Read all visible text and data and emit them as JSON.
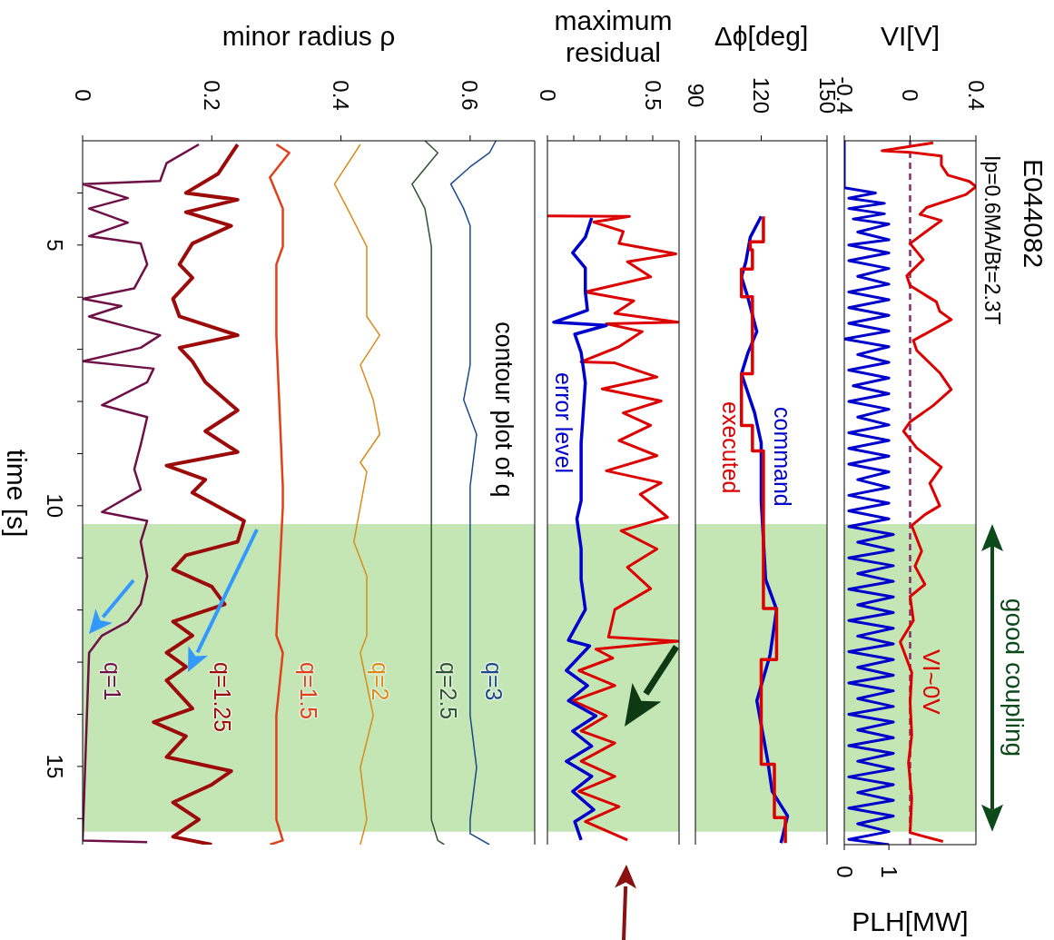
{
  "chart_data": [
    {
      "type": "line",
      "orientation": "horizontal",
      "subtitle": "Ip=0.6MA/Bt=2.3T",
      "xlabel": "VI[V]",
      "x2label": "PLH[MW]",
      "ylim": [
        16.5,
        3
      ],
      "yticks": [
        {
          "value": 5,
          "label": null
        },
        {
          "value": 10,
          "label": null
        },
        {
          "value": 15,
          "label": null
        }
      ],
      "xlim": [
        -0.4,
        0.4
      ],
      "xticks": [
        -0.4,
        0,
        0.4
      ],
      "x2lim": [
        0,
        2.95
      ],
      "x2ticks": [
        0,
        1
      ],
      "tick_labels": "x",
      "ref_lines": [
        {
          "axis": "x",
          "value": 0,
          "color": "#8b2a6b",
          "line_style": "dashed"
        }
      ],
      "bands": [
        {
          "axis": "y",
          "from": 10.35,
          "to": 16.25,
          "label": "good coupling",
          "color": "#c4e6b5"
        }
      ],
      "annotations": [
        "VI~0V",
        "E044082"
      ],
      "series": [
        {
          "color": "#dd0000",
          "x": [
            3.04,
            3.19,
            3.22,
            3.29,
            3.47,
            3.66,
            3.78,
            3.88,
            4.03,
            4.28,
            4.41,
            4.53,
            4.78,
            4.97,
            5.28,
            5.59,
            5.78,
            6.09,
            6.27,
            6.43,
            6.83,
            7.02,
            7.45,
            7.77,
            8.08,
            8.39,
            8.57,
            8.89,
            9.26,
            9.57,
            10.0,
            10.17,
            10.38,
            10.87,
            11.16,
            11.51,
            11.74,
            12.2,
            12.61,
            13.2,
            13.77,
            14.4,
            14.93,
            15.6,
            16.27,
            16.44
          ],
          "values": [
            0.14,
            -0.17,
            0.0,
            0.19,
            0.19,
            0.23,
            0.36,
            0.4,
            0.34,
            0.1,
            0.06,
            0.19,
            0.08,
            0.0,
            0.08,
            -0.02,
            0.0,
            0.16,
            0.18,
            0.25,
            0.02,
            0.04,
            0.18,
            0.25,
            0.14,
            0.0,
            -0.04,
            0.04,
            0.19,
            0.12,
            0.18,
            0.09,
            0.01,
            0.07,
            0.03,
            0.09,
            0.0,
            0.02,
            -0.06,
            0.01,
            0.0,
            0.01,
            -0.01,
            0.01,
            0.0,
            0.2
          ]
        },
        {
          "color": "#0000cc",
          "axis": "x2",
          "x": [
            3.0,
            3.9,
            4.0,
            4.1,
            4.2,
            4.3,
            4.4,
            4.5,
            4.6,
            4.75,
            4.9,
            5.0,
            5.15,
            5.3,
            5.45,
            5.6,
            5.75,
            5.9,
            6.05,
            6.2,
            6.35,
            6.5,
            6.65,
            6.8,
            6.95,
            7.1,
            7.25,
            7.4,
            7.55,
            7.7,
            7.85,
            8.0,
            8.15,
            8.3,
            8.45,
            8.6,
            8.75,
            8.9,
            9.05,
            9.2,
            9.35,
            9.5,
            9.65,
            9.8,
            9.95,
            10.1,
            10.25,
            10.4,
            10.55,
            10.7,
            10.85,
            11.0,
            11.15,
            11.3,
            11.45,
            11.6,
            11.75,
            11.9,
            12.05,
            12.2,
            12.35,
            12.5,
            12.65,
            12.8,
            12.95,
            13.1,
            13.25,
            13.4,
            13.55,
            13.7,
            13.85,
            14.0,
            14.15,
            14.3,
            14.45,
            14.6,
            14.75,
            14.9,
            15.05,
            15.2,
            15.35,
            15.5,
            15.65,
            15.8,
            15.95,
            16.1,
            16.25,
            16.4,
            16.5
          ],
          "values": [
            0.0,
            0.0,
            0.7,
            0.1,
            0.9,
            0.1,
            0.9,
            0.2,
            1.0,
            0.3,
            1.0,
            0.1,
            1.0,
            0.1,
            1.0,
            0.3,
            1.0,
            0.1,
            1.0,
            0.1,
            1.0,
            0.1,
            1.0,
            0.0,
            1.0,
            0.3,
            1.0,
            0.1,
            1.0,
            0.2,
            1.0,
            0.1,
            1.0,
            0.3,
            1.0,
            0.1,
            1.0,
            0.1,
            1.0,
            0.1,
            1.0,
            0.3,
            1.0,
            0.1,
            1.0,
            0.1,
            1.0,
            0.1,
            1.1,
            0.3,
            1.1,
            0.1,
            1.1,
            0.3,
            1.1,
            0.1,
            1.1,
            0.3,
            1.1,
            0.1,
            1.1,
            0.3,
            1.1,
            0.1,
            1.1,
            0.3,
            1.1,
            0.1,
            1.1,
            0.3,
            1.1,
            0.1,
            1.1,
            0.3,
            1.1,
            0.1,
            1.1,
            0.3,
            1.1,
            0.1,
            1.1,
            0.3,
            1.1,
            0.1,
            1.1,
            0.3,
            1.0,
            0.1,
            1.0
          ]
        }
      ]
    },
    {
      "type": "line",
      "orientation": "horizontal",
      "xlabel": "Δϕ[deg]",
      "ylim": [
        16.5,
        3
      ],
      "yticks": [
        {
          "value": 5,
          "label": null
        },
        {
          "value": 10,
          "label": null
        },
        {
          "value": 15,
          "label": null
        }
      ],
      "xlim": [
        90,
        150
      ],
      "xticks": [
        90,
        120,
        150
      ],
      "tick_labels": "x",
      "bands": [
        {
          "axis": "y",
          "from": 10.35,
          "to": 16.25,
          "color": "#c4e6b5"
        }
      ],
      "series": [
        {
          "name": "command",
          "color": "#0000cc",
          "x": [
            4.45,
            4.85,
            5.32,
            5.61,
            6.02,
            6.66,
            7.06,
            7.47,
            8.22,
            8.8,
            9.91,
            11.41,
            11.99,
            12.87,
            13.74,
            14.9,
            15.48,
            15.95,
            16.47
          ],
          "values": [
            120,
            115,
            113,
            111,
            114,
            118,
            114,
            111,
            117,
            120,
            120,
            122,
            127,
            124,
            118,
            123,
            125,
            132,
            129
          ]
        },
        {
          "name": "executed",
          "type": "step",
          "color": "#dd0000",
          "x": [
            4.45,
            4.94,
            5.09,
            5.46,
            5.99,
            7.47,
            8.46,
            8.95,
            11.97,
            12.95,
            14.96,
            15.98,
            16.47
          ],
          "values": [
            121,
            115,
            116,
            111,
            116,
            111,
            116,
            121,
            127,
            120,
            126,
            131,
            131
          ]
        }
      ]
    },
    {
      "type": "line",
      "orientation": "horizontal",
      "xlabel": "maximum residual",
      "ylim": [
        16.5,
        3
      ],
      "yticks": [
        {
          "value": 5,
          "label": null
        },
        {
          "value": 10,
          "label": null
        },
        {
          "value": 15,
          "label": null
        }
      ],
      "xlim": [
        0,
        0.625
      ],
      "xticks": [
        0,
        {
          "value": 0.125,
          "label": null
        },
        {
          "value": 0.25,
          "label": null
        },
        {
          "value": 0.375,
          "label": null
        },
        0.5
      ],
      "tick_labels": "x",
      "bands": [
        {
          "axis": "y",
          "from": 10.35,
          "to": 16.25,
          "color": "#c4e6b5"
        }
      ],
      "series": [
        {
          "color": "#dd0000",
          "x": [
            4.44,
            4.45,
            4.56,
            4.74,
            4.97,
            5.17,
            5.32,
            5.61,
            5.9,
            6.07,
            6.31,
            6.48,
            6.51,
            6.66,
            6.95,
            7.24,
            7.26,
            7.53,
            7.76,
            7.99,
            8.22,
            8.46,
            8.75,
            9.04,
            9.33,
            9.56,
            9.78,
            10.22,
            10.48,
            10.83,
            11.18,
            11.59,
            11.99,
            12.52,
            12.6,
            12.75,
            12.92,
            13.16,
            13.45,
            13.74,
            14.03,
            14.32,
            14.55,
            14.9,
            15.19,
            15.48,
            15.77,
            16.06,
            16.41
          ],
          "values": [
            0.0,
            0.39,
            0.22,
            0.36,
            0.34,
            0.61,
            0.38,
            0.49,
            0.18,
            0.41,
            0.32,
            0.62,
            0.28,
            0.45,
            0.34,
            0.16,
            0.32,
            0.52,
            0.26,
            0.54,
            0.36,
            0.49,
            0.34,
            0.52,
            0.28,
            0.54,
            0.44,
            0.57,
            0.35,
            0.52,
            0.38,
            0.49,
            0.32,
            0.29,
            0.62,
            0.23,
            0.31,
            0.15,
            0.32,
            0.12,
            0.28,
            0.16,
            0.32,
            0.16,
            0.32,
            0.15,
            0.34,
            0.18,
            0.38
          ]
        },
        {
          "name": "error level",
          "color": "#0000cc",
          "x": [
            4.48,
            4.85,
            5.15,
            5.44,
            5.9,
            6.25,
            6.48,
            6.54,
            6.71,
            7.06,
            7.64,
            8.22,
            8.8,
            9.38,
            9.9,
            10.25,
            10.83,
            11.41,
            11.99,
            12.58,
            12.69,
            13.16,
            13.45,
            13.74,
            14.03,
            14.32,
            14.61,
            14.9,
            15.19,
            15.48,
            15.83,
            16.06,
            16.41
          ],
          "values": [
            0.21,
            0.18,
            0.12,
            0.18,
            0.18,
            0.19,
            0.03,
            0.28,
            0.13,
            0.16,
            0.18,
            0.17,
            0.16,
            0.16,
            0.16,
            0.14,
            0.16,
            0.16,
            0.18,
            0.1,
            0.2,
            0.09,
            0.19,
            0.1,
            0.23,
            0.12,
            0.21,
            0.09,
            0.21,
            0.12,
            0.22,
            0.13,
            0.16
          ]
        }
      ]
    },
    {
      "type": "line",
      "orientation": "horizontal",
      "xlabel": "minor radius ρ",
      "ylabel": "time [s]",
      "ylim": [
        16.5,
        3
      ],
      "yticks": [
        {
          "value": 4,
          "label": null
        },
        5,
        {
          "value": 6,
          "label": null
        },
        {
          "value": 7,
          "label": null
        },
        {
          "value": 8,
          "label": null
        },
        {
          "value": 9,
          "label": null
        },
        10,
        {
          "value": 11,
          "label": null
        },
        {
          "value": 12,
          "label": null
        },
        {
          "value": 13,
          "label": null
        },
        {
          "value": 14,
          "label": null
        },
        15,
        {
          "value": 16,
          "label": null
        }
      ],
      "xlim": [
        0,
        0.7
      ],
      "xticks": [
        0,
        0.2,
        0.4,
        0.6
      ],
      "bands": [
        {
          "axis": "y",
          "from": 10.35,
          "to": 16.25,
          "color": "#c4e6b5"
        }
      ],
      "annotations": [
        "contour plot of q"
      ],
      "series": [
        {
          "name": "q=3",
          "color": "#1a4a8a",
          "x": [
            3.0,
            3.23,
            3.5,
            3.83,
            4.3,
            4.63,
            5.03,
            5.2,
            5.37,
            6.37,
            6.55,
            6.73,
            7.3,
            7.97,
            8.63,
            9.63,
            10.02,
            11.35,
            12.49,
            12.65,
            12.82,
            14.02,
            15.02,
            16.02,
            16.29,
            16.5
          ],
          "values": [
            0.64,
            0.63,
            0.6,
            0.57,
            0.59,
            0.6,
            0.6,
            null,
            0.6,
            0.6,
            null,
            0.6,
            0.6,
            0.59,
            0.61,
            0.6,
            0.6,
            0.6,
            0.6,
            null,
            0.6,
            0.6,
            0.61,
            0.6,
            0.6,
            0.63
          ]
        },
        {
          "name": "q=2.5",
          "color": "#2e5530",
          "x": [
            3.0,
            3.23,
            3.83,
            4.3,
            5.03,
            5.2,
            5.37,
            6.37,
            6.55,
            6.73,
            8.97,
            9.63,
            10.02,
            11.35,
            12.49,
            12.65,
            12.82,
            16.02,
            16.42,
            16.5
          ],
          "values": [
            0.53,
            0.55,
            0.51,
            0.53,
            0.54,
            null,
            0.54,
            0.54,
            null,
            0.54,
            0.54,
            0.54,
            0.54,
            0.54,
            0.54,
            null,
            0.54,
            0.54,
            0.55,
            0.56
          ]
        },
        {
          "name": "q=2",
          "color": "#d98c1a",
          "x": [
            3.07,
            3.83,
            4.3,
            5.03,
            5.2,
            5.37,
            6.37,
            6.55,
            6.73,
            7.3,
            7.97,
            8.63,
            9.17,
            9.35,
            10.69,
            11.35,
            12.49,
            12.65,
            12.82,
            14.02,
            15.02,
            16.02,
            16.5
          ],
          "values": [
            0.43,
            0.39,
            0.41,
            0.44,
            null,
            0.44,
            0.44,
            null,
            0.46,
            0.43,
            0.45,
            0.46,
            0.43,
            0.44,
            0.42,
            0.44,
            0.44,
            null,
            0.43,
            0.45,
            0.43,
            0.44,
            0.43
          ]
        },
        {
          "name": "q=1.5",
          "color": "#e0401a",
          "x": [
            3.07,
            3.23,
            3.7,
            4.3,
            5.03,
            5.2,
            5.37,
            6.37,
            6.55,
            6.73,
            9.63,
            10.02,
            12.49,
            12.65,
            12.82,
            14.02,
            16.02,
            16.42,
            16.5
          ],
          "values": [
            0.3,
            0.32,
            0.29,
            0.31,
            0.31,
            null,
            0.3,
            0.3,
            null,
            0.3,
            0.31,
            0.31,
            0.3,
            null,
            0.31,
            0.3,
            0.3,
            0.31,
            0.29
          ]
        },
        {
          "name": "q=1.25",
          "color": "#9c0a0a",
          "x": [
            3.07,
            3.63,
            4.0,
            4.13,
            4.37,
            4.63,
            4.97,
            5.2,
            5.37,
            5.63,
            6.03,
            6.37,
            6.55,
            6.73,
            6.97,
            7.23,
            7.63,
            8.17,
            8.57,
            8.97,
            9.23,
            9.5,
            9.75,
            9.95,
            10.29,
            10.69,
            10.95,
            11.22,
            11.55,
            11.89,
            12.22,
            12.49,
            12.65,
            12.82,
            13.09,
            13.35,
            13.89,
            14.15,
            14.42,
            14.82,
            15.09,
            15.35,
            15.69,
            16.02,
            16.35,
            16.5
          ],
          "values": [
            0.24,
            0.21,
            0.16,
            0.24,
            0.16,
            0.23,
            0.17,
            null,
            0.15,
            0.17,
            0.14,
            0.15,
            null,
            0.24,
            0.15,
            0.17,
            0.19,
            0.24,
            0.19,
            0.24,
            0.13,
            0.19,
            0.17,
            0.2,
            0.25,
            0.24,
            0.16,
            0.14,
            0.2,
            0.22,
            0.14,
            0.17,
            null,
            0.13,
            0.16,
            0.13,
            0.17,
            0.11,
            0.16,
            0.13,
            0.23,
            0.2,
            0.14,
            0.18,
            0.14,
            0.2
          ]
        },
        {
          "name": "q=1",
          "color": "#6e1045",
          "x": [
            3.07,
            3.43,
            3.77,
            3.83,
            4.1,
            4.3,
            4.57,
            4.83,
            4.97,
            5.2,
            5.37,
            5.83,
            6.03,
            6.17,
            6.37,
            6.55,
            6.73,
            6.97,
            7.23,
            7.37,
            7.63,
            8.07,
            8.3,
            8.83,
            9.3,
            9.69,
            10.12,
            10.29,
            10.69,
            11.35,
            11.89,
            12.22,
            12.49,
            12.65,
            12.82,
            13.0,
            16.42,
            16.45
          ],
          "values": [
            0.18,
            0.13,
            0.12,
            0.0,
            0.07,
            0.01,
            0.07,
            0.01,
            0.09,
            null,
            0.1,
            0.08,
            0.0,
            0.06,
            0.01,
            null,
            0.12,
            0.09,
            0.0,
            0.11,
            0.1,
            0.03,
            0.1,
            0.09,
            0.08,
            0.09,
            0.03,
            0.1,
            0.09,
            0.1,
            0.09,
            0.07,
            0.03,
            null,
            0.01,
            null,
            0.0,
            0.1
          ]
        }
      ]
    }
  ]
}
